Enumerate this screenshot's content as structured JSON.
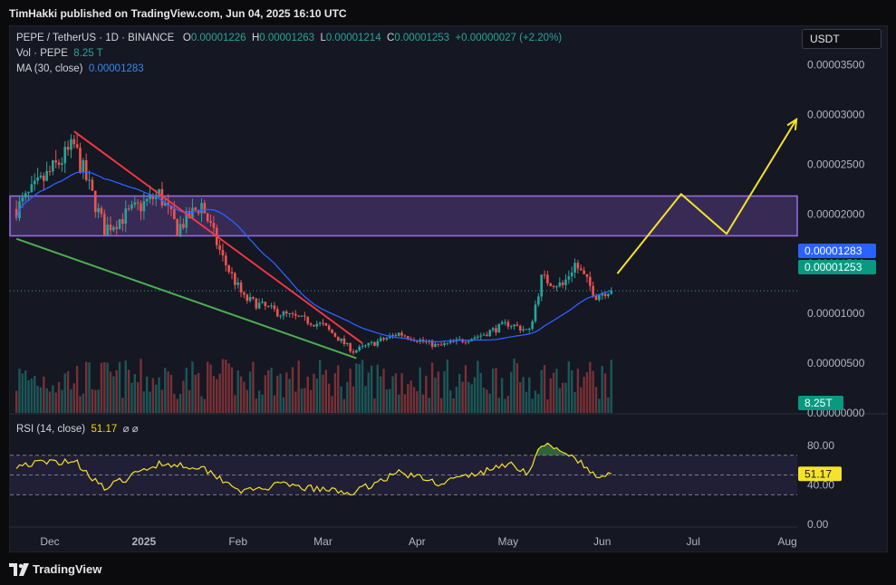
{
  "header": {
    "caption": "TimHakki published on TradingView.com, Jun 04, 2025 16:10 UTC"
  },
  "legend": {
    "symbol": "PEPE / TetherUS · 1D · BINANCE",
    "o_label": "O",
    "o": "0.00001226",
    "h_label": "H",
    "h": "0.00001263",
    "l_label": "L",
    "l": "0.00001214",
    "c_label": "C",
    "c": "0.00001253",
    "change": "+0.00000027 (+2.20%)",
    "vol_label": "Vol · PEPE",
    "vol": "8.25 T",
    "ma_label": "MA (30, close)",
    "ma": "0.00001283",
    "rsi_label": "RSI (14, close)",
    "rsi": "51.17",
    "rsi_icons": "⌀  ⌀"
  },
  "currency": "USDT",
  "footer": {
    "brand": "TradingView"
  },
  "colors": {
    "up": "#26a69a",
    "down": "#ef5350",
    "ma": "#2962ff",
    "zone": "#7e57c2",
    "resistance": "#f23645",
    "support": "#4caf50",
    "projection": "#f5e22c",
    "rsi": "#f5e22c"
  },
  "chart_data": [
    {
      "type": "candlestick",
      "title": "PEPE / TetherUS · 1D · BINANCE",
      "x_tick_labels": [
        "Dec",
        "2025",
        "Feb",
        "Mar",
        "Apr",
        "May",
        "Jun",
        "Jul",
        "Aug"
      ],
      "x_tick_dates": [
        "2024-12-01",
        "2025-01-01",
        "2025-02-01",
        "2025-03-01",
        "2025-04-01",
        "2025-05-01",
        "2025-06-01",
        "2025-07-01",
        "2025-08-01"
      ],
      "y_tick_labels": [
        "0.00003500",
        "0.00003000",
        "0.00002500",
        "0.00002000",
        "0.00001500",
        "0.00001000",
        "0.00000500",
        "0.00000000"
      ],
      "ylim": [
        0.0,
        3.85e-05
      ],
      "price_labels": {
        "ma": "0.00001283",
        "last": "0.00001253",
        "volume": "8.25T"
      },
      "key_points": [
        {
          "date": "2024-11-20",
          "price": 2.05e-05
        },
        {
          "date": "2024-12-09",
          "price": 2.68e-05
        },
        {
          "date": "2024-12-19",
          "price": 1.85e-05
        },
        {
          "date": "2025-01-06",
          "price": 2.2e-05
        },
        {
          "date": "2025-01-12",
          "price": 1.85e-05
        },
        {
          "date": "2025-01-20",
          "price": 2.1e-05
        },
        {
          "date": "2025-01-27",
          "price": 1.55e-05
        },
        {
          "date": "2025-02-03",
          "price": 1.15e-05
        },
        {
          "date": "2025-02-15",
          "price": 1e-05
        },
        {
          "date": "2025-03-01",
          "price": 8.8e-06
        },
        {
          "date": "2025-03-11",
          "price": 6.2e-06
        },
        {
          "date": "2025-03-26",
          "price": 8e-06
        },
        {
          "date": "2025-04-08",
          "price": 6.7e-06
        },
        {
          "date": "2025-04-22",
          "price": 7.8e-06
        },
        {
          "date": "2025-05-01",
          "price": 9e-06
        },
        {
          "date": "2025-05-08",
          "price": 8.2e-06
        },
        {
          "date": "2025-05-12",
          "price": 1.35e-05
        },
        {
          "date": "2025-05-19",
          "price": 1.28e-05
        },
        {
          "date": "2025-05-23",
          "price": 1.5e-05
        },
        {
          "date": "2025-05-30",
          "price": 1.18e-05
        },
        {
          "date": "2025-06-04",
          "price": 1.253e-05
        }
      ],
      "resistance_zone": [
        1.78e-05,
        2.18e-05
      ],
      "trendlines": {
        "resistance": [
          {
            "date": "2024-12-09",
            "price": 2.83e-05
          },
          {
            "date": "2025-03-14",
            "price": 7e-06
          }
        ],
        "support": [
          {
            "date": "2024-11-20",
            "price": 1.75e-05
          },
          {
            "date": "2025-03-12",
            "price": 5.5e-06
          }
        ]
      },
      "projection": [
        {
          "date": "2025-06-06",
          "price": 1.4e-05
        },
        {
          "date": "2025-06-27",
          "price": 2.2e-05
        },
        {
          "date": "2025-07-12",
          "price": 1.8e-05
        },
        {
          "date": "2025-08-04",
          "price": 2.95e-05
        }
      ]
    },
    {
      "type": "line",
      "title": "RSI (14, close)",
      "y_tick_labels": [
        "80.00",
        "40.00",
        "0.00"
      ],
      "ylim": [
        -10,
        100
      ],
      "bands": [
        30,
        50,
        70
      ],
      "current": 51.17,
      "key_points": [
        {
          "date": "2024-11-20",
          "rsi": 60
        },
        {
          "date": "2024-12-09",
          "rsi": 65
        },
        {
          "date": "2024-12-19",
          "rsi": 36
        },
        {
          "date": "2025-01-06",
          "rsi": 62
        },
        {
          "date": "2025-01-20",
          "rsi": 58
        },
        {
          "date": "2025-02-03",
          "rsi": 33
        },
        {
          "date": "2025-02-15",
          "rsi": 40
        },
        {
          "date": "2025-03-01",
          "rsi": 35
        },
        {
          "date": "2025-03-11",
          "rsi": 32
        },
        {
          "date": "2025-03-26",
          "rsi": 53
        },
        {
          "date": "2025-04-08",
          "rsi": 42
        },
        {
          "date": "2025-04-22",
          "rsi": 52
        },
        {
          "date": "2025-05-01",
          "rsi": 62
        },
        {
          "date": "2025-05-08",
          "rsi": 52
        },
        {
          "date": "2025-05-12",
          "rsi": 82
        },
        {
          "date": "2025-05-19",
          "rsi": 72
        },
        {
          "date": "2025-05-23",
          "rsi": 68
        },
        {
          "date": "2025-05-30",
          "rsi": 47
        },
        {
          "date": "2025-06-04",
          "rsi": 51.17
        }
      ]
    }
  ]
}
